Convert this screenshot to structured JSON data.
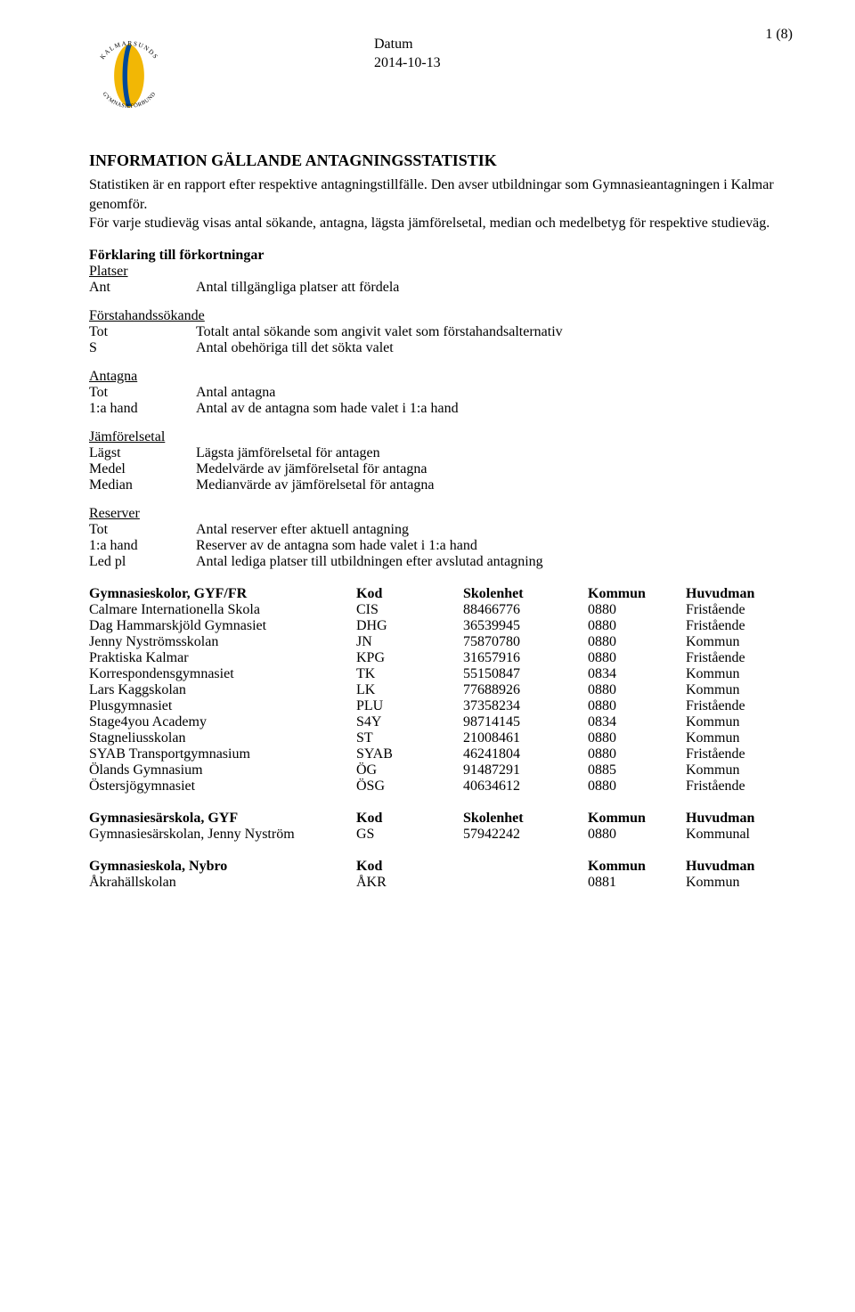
{
  "header": {
    "page_number": "1 (8)",
    "date_label": "Datum",
    "date_value": "2014-10-13",
    "logo": {
      "circle_text_top": "KALMARSUNDS",
      "circle_text_bottom": "GYMNASIEFÖRBUND",
      "swoosh_color": "#f2b705",
      "stripe_color": "#004a99"
    }
  },
  "title": "INFORMATION GÄLLANDE ANTAGNINGSSTATISTIK",
  "intro1": "Statistiken är en rapport efter respektive antagningstillfälle. Den avser utbildningar som Gymnasieantagningen i Kalmar genomför.",
  "intro2": "För varje studieväg visas antal sökande, antagna, lägsta jämförelsetal, median och medelbetyg för respektive studieväg.",
  "forkortningar_heading": "Förklaring till förkortningar",
  "groups": [
    {
      "heading": "Platser",
      "rows": [
        {
          "term": "Ant",
          "desc": "Antal tillgängliga platser att fördela"
        }
      ]
    },
    {
      "heading": "Förstahandssökande",
      "rows": [
        {
          "term": "Tot",
          "desc": "Totalt antal sökande som angivit valet som förstahandsalternativ"
        },
        {
          "term": "S",
          "desc": "Antal obehöriga till det sökta valet"
        }
      ]
    },
    {
      "heading": "Antagna",
      "rows": [
        {
          "term": "Tot",
          "desc": "Antal antagna"
        },
        {
          "term": "1:a hand",
          "desc": "Antal av de antagna som hade valet i 1:a hand"
        }
      ]
    },
    {
      "heading": "Jämförelsetal",
      "rows": [
        {
          "term": "Lägst",
          "desc": "Lägsta jämförelsetal för antagen"
        },
        {
          "term": "Medel",
          "desc": "Medelvärde av jämförelsetal för antagna"
        },
        {
          "term": "Median",
          "desc": "Medianvärde av jämförelsetal för antagna"
        }
      ]
    },
    {
      "heading": "Reserver",
      "rows": [
        {
          "term": "Tot",
          "desc": "Antal reserver efter aktuell antagning"
        },
        {
          "term": "1:a hand",
          "desc": "Reserver av de antagna som hade valet i 1:a hand"
        },
        {
          "term": "Led pl",
          "desc": "Antal lediga platser till utbildningen efter avslutad antagning"
        }
      ]
    }
  ],
  "tables": [
    {
      "heading": [
        "Gymnasieskolor, GYF/FR",
        "Kod",
        "Skolenhet",
        "Kommun",
        "Huvudman"
      ],
      "rows": [
        [
          "Calmare Internationella Skola",
          "CIS",
          "88466776",
          "0880",
          "Fristående"
        ],
        [
          "Dag Hammarskjöld Gymnasiet",
          "DHG",
          "36539945",
          "0880",
          "Fristående"
        ],
        [
          "Jenny Nyströmsskolan",
          "JN",
          "75870780",
          "0880",
          "Kommun"
        ],
        [
          "Praktiska Kalmar",
          "KPG",
          "31657916",
          "0880",
          "Fristående"
        ],
        [
          "Korrespondensgymnasiet",
          "TK",
          "55150847",
          "0834",
          "Kommun"
        ],
        [
          "Lars Kaggskolan",
          "LK",
          "77688926",
          "0880",
          "Kommun"
        ],
        [
          "Plusgymnasiet",
          "PLU",
          "37358234",
          "0880",
          "Fristående"
        ],
        [
          "Stage4you Academy",
          "S4Y",
          "98714145",
          "0834",
          "Kommun"
        ],
        [
          "Stagneliusskolan",
          "ST",
          "21008461",
          "0880",
          "Kommun"
        ],
        [
          "SYAB Transportgymnasium",
          "SYAB",
          "46241804",
          "0880",
          "Fristående"
        ],
        [
          "Ölands Gymnasium",
          "ÖG",
          "91487291",
          "0885",
          "Kommun"
        ],
        [
          "Östersjögymnasiet",
          "ÖSG",
          "40634612",
          "0880",
          "Fristående"
        ]
      ]
    },
    {
      "heading": [
        "Gymnasiesärskola, GYF",
        "Kod",
        "Skolenhet",
        "Kommun",
        "Huvudman"
      ],
      "rows": [
        [
          "Gymnasiesärskolan, Jenny Nyström",
          "GS",
          "57942242",
          "0880",
          "Kommunal"
        ]
      ]
    },
    {
      "heading": [
        "Gymnasieskola, Nybro",
        "Kod",
        "",
        "Kommun",
        "Huvudman"
      ],
      "rows": [
        [
          "Åkrahällskolan",
          "ÅKR",
          "",
          "0881",
          "Kommun"
        ]
      ]
    }
  ]
}
